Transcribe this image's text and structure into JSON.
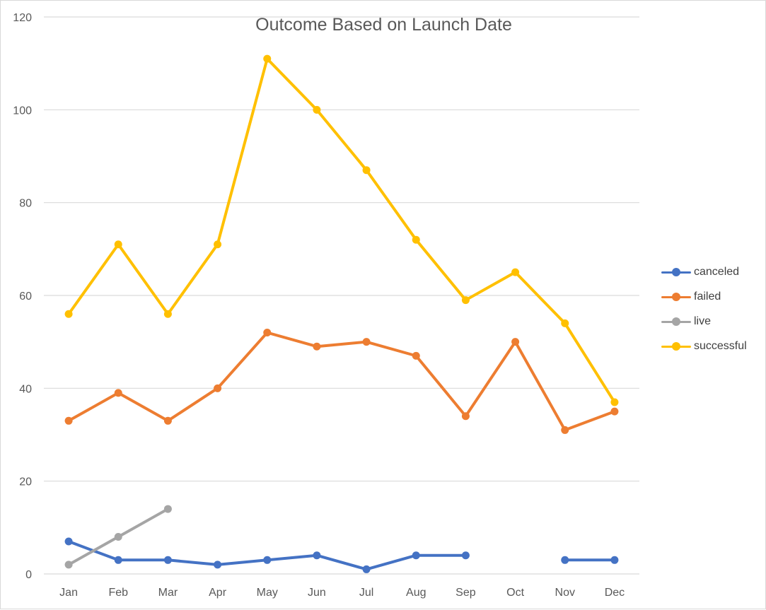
{
  "chart_data": {
    "type": "line",
    "title": "Outcome Based on Launch Date",
    "xlabel": "",
    "ylabel": "",
    "categories": [
      "Jan",
      "Feb",
      "Mar",
      "Apr",
      "May",
      "Jun",
      "Jul",
      "Aug",
      "Sep",
      "Oct",
      "Nov",
      "Dec"
    ],
    "ylim": [
      0,
      120
    ],
    "yticks": [
      0,
      20,
      40,
      60,
      80,
      100,
      120
    ],
    "grid": true,
    "legend_position": "right",
    "series": [
      {
        "name": "canceled",
        "color": "#4472c4",
        "values": [
          7,
          3,
          3,
          2,
          3,
          4,
          1,
          4,
          4,
          null,
          3,
          3
        ]
      },
      {
        "name": "failed",
        "color": "#ed7d31",
        "values": [
          33,
          39,
          33,
          40,
          52,
          49,
          50,
          47,
          34,
          50,
          31,
          35
        ]
      },
      {
        "name": "live",
        "color": "#a5a5a5",
        "values": [
          2,
          8,
          14,
          null,
          null,
          null,
          null,
          null,
          null,
          null,
          null,
          null
        ]
      },
      {
        "name": "successful",
        "color": "#ffc000",
        "values": [
          56,
          71,
          56,
          71,
          111,
          100,
          87,
          72,
          59,
          65,
          54,
          37
        ]
      }
    ]
  }
}
